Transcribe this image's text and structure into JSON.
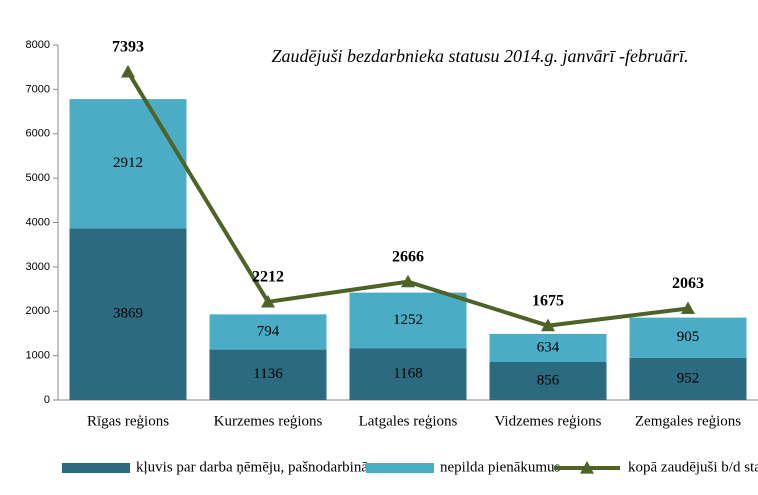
{
  "chart_data": {
    "type": "bar",
    "stacked": true,
    "title": "Zaudējuši bezdarbnieka statusu 2014.g. janvārī -februārī.",
    "categories": [
      "Rīgas reģions",
      "Kurzemes reģions",
      "Latgales reģions",
      "Vidzemes reģions",
      "Zemgales reģions"
    ],
    "series": [
      {
        "name": "kļuvis par darba ņēmēju, pašnodarbināto",
        "type": "bar",
        "color": "#2c6a80",
        "values": [
          3869,
          1136,
          1168,
          856,
          952
        ]
      },
      {
        "name": "nepilda pienākumus",
        "type": "bar",
        "color": "#4bacc6",
        "values": [
          2912,
          794,
          1252,
          634,
          905
        ]
      },
      {
        "name": "kopā zaudējuši b/d statusu",
        "type": "line",
        "color": "#4f6228",
        "values": [
          7393,
          2212,
          2666,
          1675,
          2063
        ]
      }
    ],
    "ylim": [
      0,
      8000
    ],
    "yticks": [
      0,
      1000,
      2000,
      3000,
      4000,
      5000,
      6000,
      7000,
      8000
    ],
    "grid": false
  }
}
